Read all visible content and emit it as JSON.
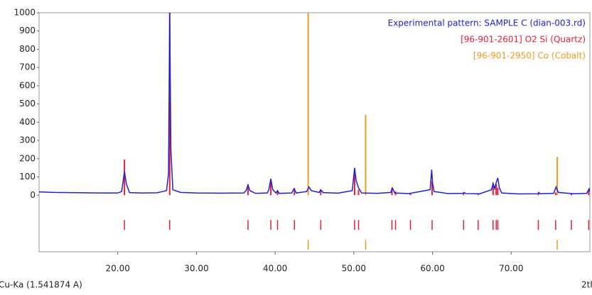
{
  "chart_data": {
    "type": "line",
    "radiation_label": "Cu-Ka (1.541874 A)",
    "x_label": "2th",
    "xlim": [
      10,
      80
    ],
    "ylim": [
      -310,
      1000
    ],
    "xticks": [
      {
        "value": 20,
        "label": "20.00"
      },
      {
        "value": 30,
        "label": "30.00"
      },
      {
        "value": 40,
        "label": "40.00"
      },
      {
        "value": 50,
        "label": "50.00"
      },
      {
        "value": 60,
        "label": "60.00"
      },
      {
        "value": 70,
        "label": "70.00"
      }
    ],
    "yticks": [
      0,
      100,
      200,
      300,
      400,
      500,
      600,
      700,
      800,
      900,
      1000
    ],
    "grid": false,
    "legend": "top-right",
    "series": [
      {
        "name": "Experimental pattern: SAMPLE C (dian-003.rd)",
        "color": "#1f1fd6",
        "style": "line",
        "x": [
          10,
          12,
          14,
          16,
          18,
          20,
          20.5,
          20.85,
          21.1,
          21.5,
          23,
          25,
          26.2,
          26.45,
          26.6,
          26.75,
          27,
          28,
          30,
          33,
          36,
          36.3,
          36.55,
          36.8,
          37.5,
          39,
          39.2,
          39.45,
          39.7,
          40.1,
          40.3,
          40.5,
          42.1,
          42.4,
          42.7,
          44,
          44.3,
          44.6,
          45.6,
          45.8,
          46.1,
          48,
          49.8,
          50.1,
          50.3,
          50.6,
          51,
          53,
          54.7,
          54.9,
          55.2,
          57,
          59.7,
          59.9,
          60,
          60.2,
          62,
          63.9,
          64.0,
          64.2,
          66,
          67.5,
          67.7,
          67.9,
          68.1,
          68.3,
          68.5,
          68.8,
          71,
          73.4,
          73.5,
          73.7,
          75.4,
          75.7,
          76,
          78,
          79.6,
          79.9,
          80
        ],
        "values": [
          18,
          15,
          14,
          13,
          12,
          12,
          20,
          130,
          60,
          14,
          12,
          13,
          25,
          120,
          1000,
          250,
          30,
          15,
          12,
          11,
          12,
          25,
          55,
          25,
          10,
          12,
          30,
          90,
          30,
          12,
          25,
          10,
          12,
          35,
          12,
          20,
          45,
          25,
          15,
          30,
          14,
          11,
          25,
          150,
          80,
          40,
          12,
          10,
          15,
          40,
          12,
          9,
          30,
          140,
          70,
          20,
          9,
          10,
          15,
          9,
          8,
          30,
          65,
          35,
          70,
          95,
          40,
          12,
          7,
          8,
          15,
          8,
          10,
          45,
          15,
          8,
          10,
          35,
          20
        ]
      },
      {
        "name": "[96-901-2601] O2 Si  (Quartz)",
        "color": "#e8203a",
        "style": "stick",
        "x": [
          20.85,
          26.6,
          36.55,
          39.45,
          40.3,
          42.45,
          45.8,
          50.1,
          50.6,
          54.85,
          55.3,
          57.2,
          59.95,
          63.95,
          65.8,
          67.7,
          68.1,
          68.3,
          73.45,
          75.65,
          77.65,
          79.85
        ],
        "values": [
          195,
          1000,
          60,
          80,
          20,
          40,
          30,
          130,
          30,
          40,
          20,
          10,
          75,
          15,
          8,
          50,
          60,
          40,
          10,
          15,
          8,
          30
        ]
      },
      {
        "name": "[96-901-2950] Co  (Cobalt)",
        "color": "#f39a1e",
        "style": "stick",
        "x": [
          44.2,
          51.5,
          75.85
        ],
        "values": [
          1000,
          440,
          210
        ]
      }
    ]
  }
}
